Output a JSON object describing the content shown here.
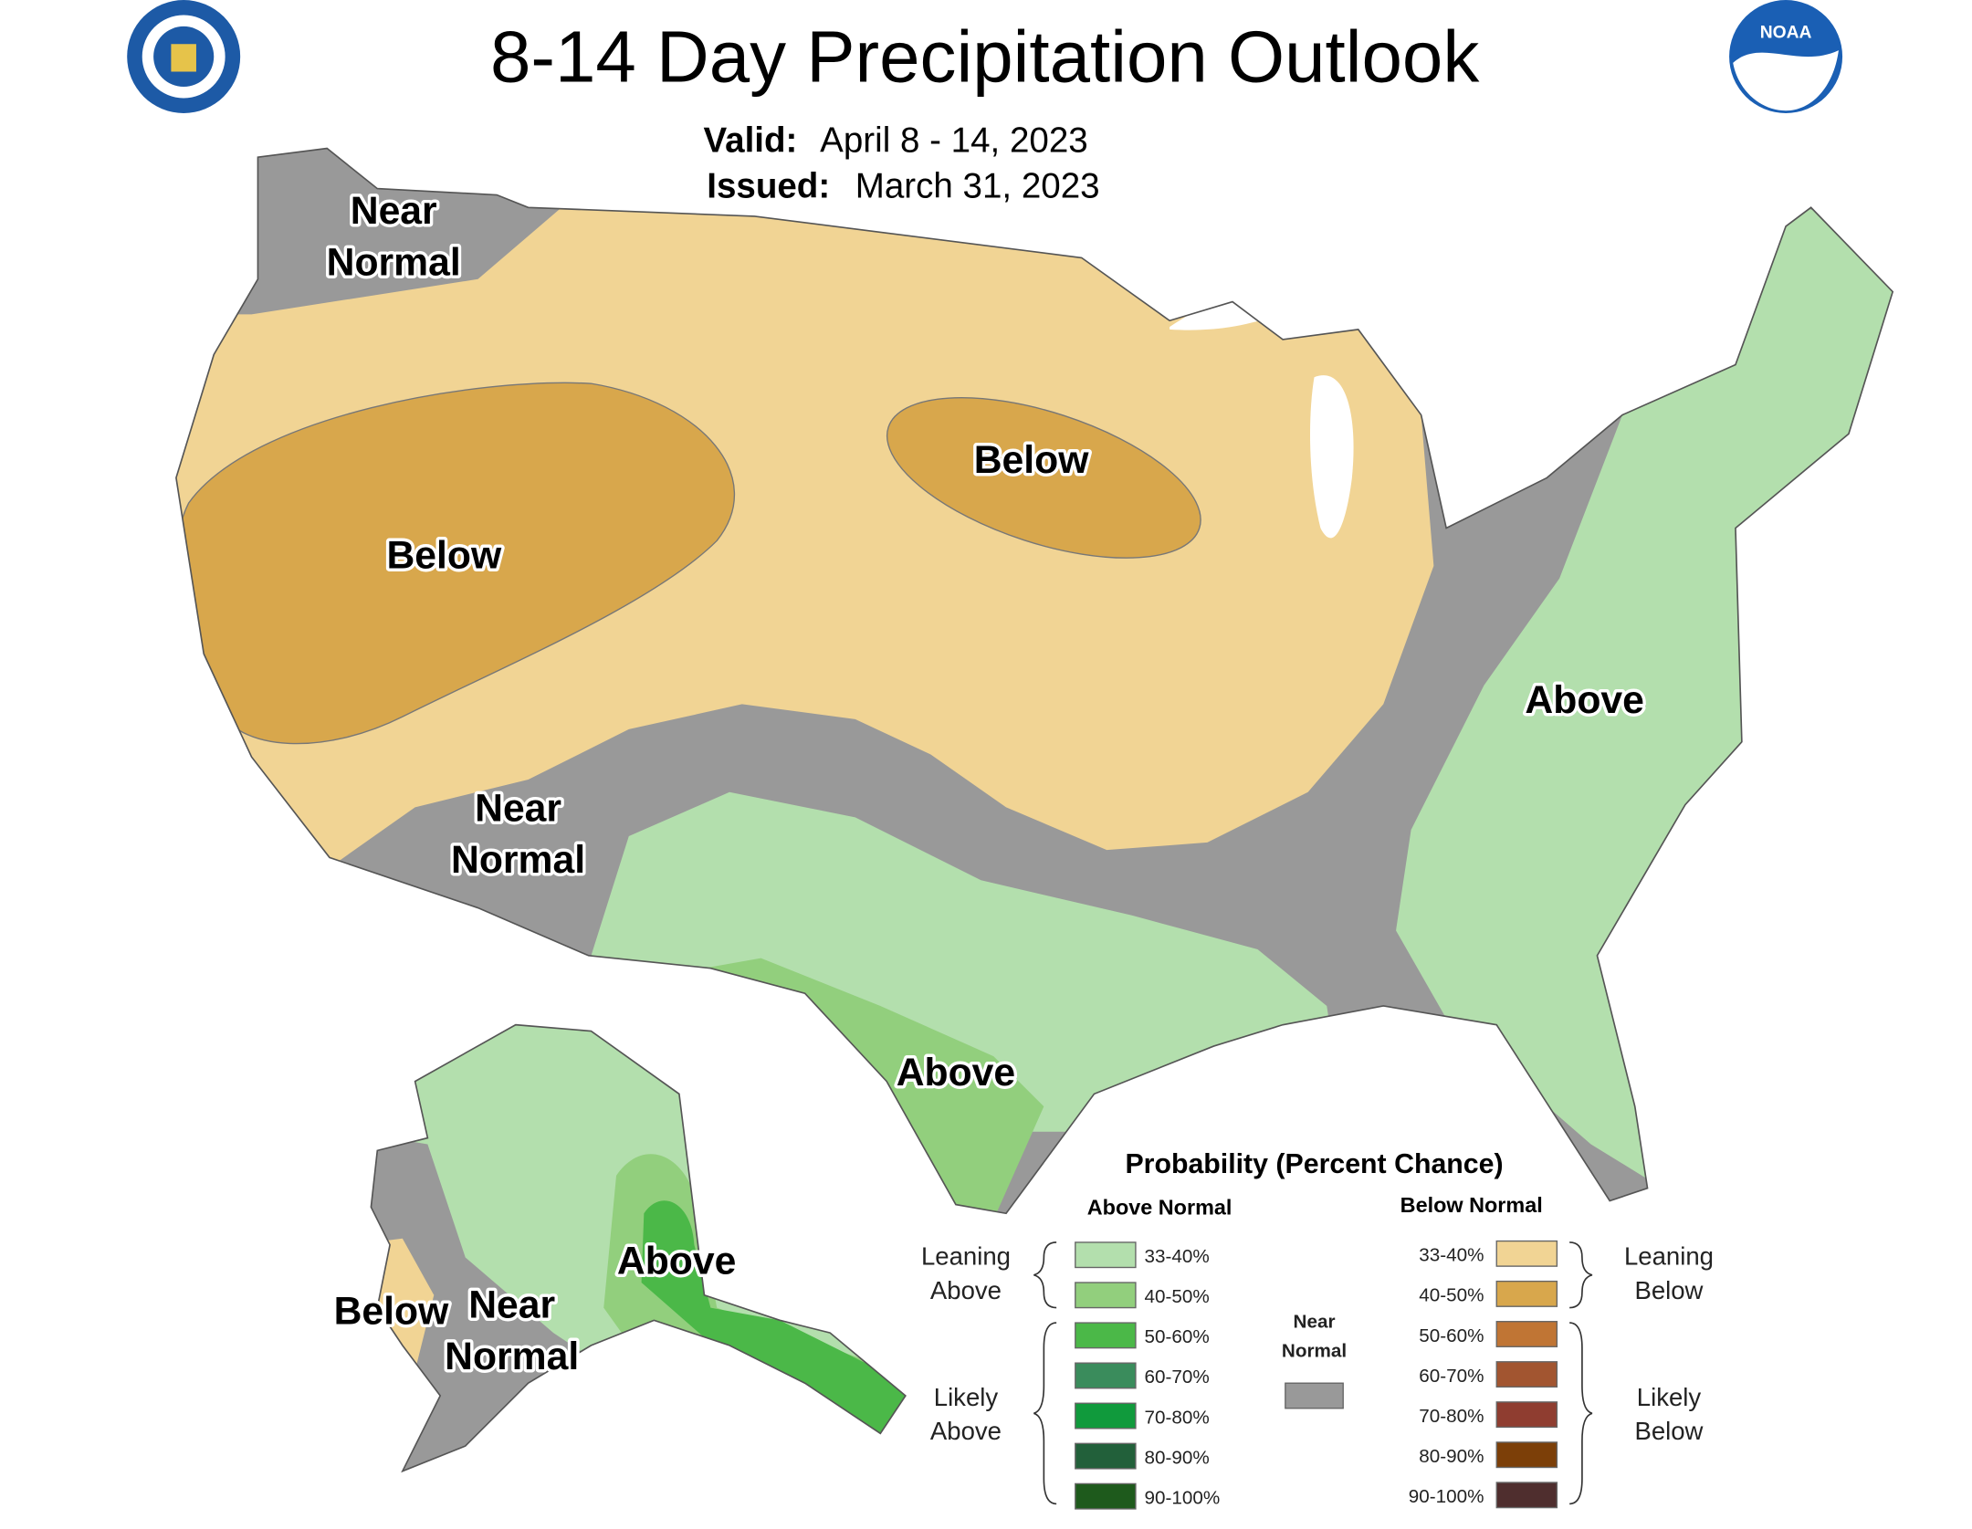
{
  "header": {
    "title": "8-14 Day Precipitation Outlook",
    "valid_label": "Valid:",
    "valid": "April 8 - 14, 2023",
    "issued_label": "Issued:",
    "issued": "March 31, 2023",
    "noaa": "NOAA"
  },
  "map_labels": [
    {
      "lines": [
        "Near",
        "Normal"
      ]
    },
    {
      "lines": [
        "Below"
      ]
    },
    {
      "lines": [
        "Below"
      ]
    },
    {
      "lines": [
        "Near",
        "Normal"
      ]
    },
    {
      "lines": [
        "Above"
      ]
    },
    {
      "lines": [
        "Above"
      ]
    },
    {
      "lines": [
        "Above"
      ]
    },
    {
      "lines": [
        "Below"
      ]
    },
    {
      "lines": [
        "Near",
        "Normal"
      ]
    }
  ],
  "legend": {
    "title": "Probability (Percent Chance)",
    "above_heading": "Above Normal",
    "below_heading": "Below Normal",
    "above": [
      {
        "label": "33-40%",
        "color": "#b3dfad"
      },
      {
        "label": "40-50%",
        "color": "#92cf7d"
      },
      {
        "label": "50-60%",
        "color": "#4bb848"
      },
      {
        "label": "60-70%",
        "color": "#3a8c5c"
      },
      {
        "label": "70-80%",
        "color": "#109a3c"
      },
      {
        "label": "80-90%",
        "color": "#22603a"
      },
      {
        "label": "90-100%",
        "color": "#1e5a1c"
      }
    ],
    "below": [
      {
        "label": "33-40%",
        "color": "#f1d494"
      },
      {
        "label": "40-50%",
        "color": "#d8a74c"
      },
      {
        "label": "50-60%",
        "color": "#c07534"
      },
      {
        "label": "60-70%",
        "color": "#a25530"
      },
      {
        "label": "70-80%",
        "color": "#8f3d30"
      },
      {
        "label": "80-90%",
        "color": "#7c3f08"
      },
      {
        "label": "90-100%",
        "color": "#4f2e2e"
      }
    ],
    "near": {
      "lines": [
        "Near",
        "Normal"
      ],
      "color": "#999999"
    },
    "leaning_above": [
      "Leaning",
      "Above"
    ],
    "likely_above": [
      "Likely",
      "Above"
    ],
    "leaning_below": [
      "Leaning",
      "Below"
    ],
    "likely_below": [
      "Likely",
      "Below"
    ]
  }
}
